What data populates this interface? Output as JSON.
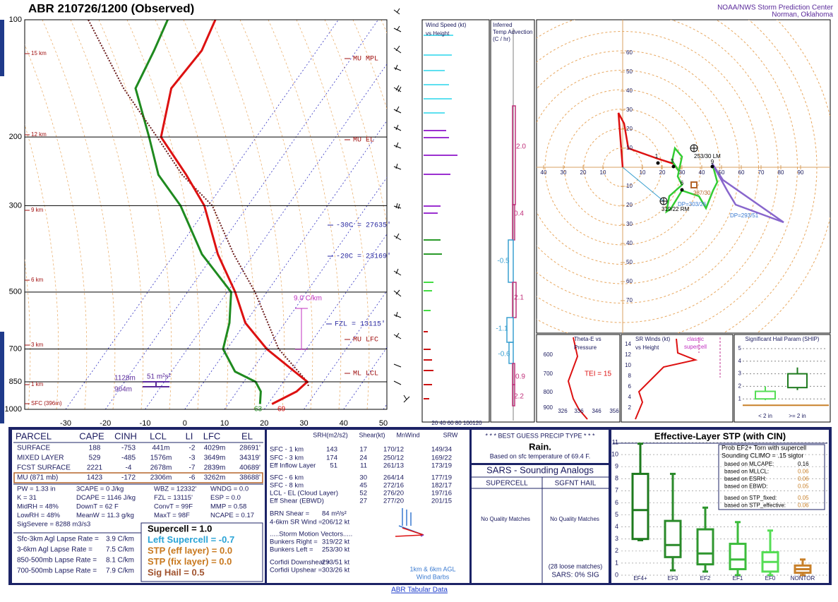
{
  "header": {
    "station_title": "ABR   210726/1200  (Observed)",
    "org": "NOAA/NWS Storm Prediction Center",
    "location": "Norman, Oklahoma"
  },
  "skewt": {
    "pressure_ticks": [
      100,
      200,
      300,
      500,
      700,
      850,
      1000
    ],
    "temp_ticks": [
      -30,
      -20,
      -10,
      0,
      10,
      20,
      30,
      40,
      50
    ],
    "height_labels": [
      "15 km",
      "12 km",
      "9 km",
      "6 km",
      "3 km",
      "1 km",
      "SFC (396m)"
    ],
    "annotations": [
      "MU MPL",
      "MU EL",
      "-30C = 27635'",
      "-20C = 23169'",
      "FZL = 13115'",
      "MU LFC",
      "ML LCL"
    ],
    "lapse_label": "9.0 C/km",
    "inflow_top": "1128m",
    "inflow_srh": "51 m²s²",
    "inflow_bottom": "904m",
    "sfc_dewpoint": "63",
    "sfc_temp": "69",
    "pressure": [
      969,
      900,
      850,
      800,
      700,
      600,
      500,
      400,
      300,
      250,
      200,
      150,
      120,
      100
    ],
    "temperature": [
      21,
      25,
      26,
      21,
      10,
      0,
      -8,
      -19,
      -31,
      -41,
      -54,
      -60,
      -59,
      -61
    ],
    "dewpoint": [
      18,
      16,
      13,
      6,
      -1,
      -4,
      -9,
      -23,
      -37,
      -48,
      -57,
      -69,
      -71,
      -73
    ],
    "parcel_pressure": [
      871,
      850,
      700,
      500,
      400,
      300,
      250,
      200,
      150,
      100
    ],
    "parcel_temp": [
      27,
      26,
      13,
      -3,
      -15,
      -29,
      -42,
      -55,
      -72,
      -93
    ]
  },
  "wind_panel": {
    "title": [
      "Wind Speed (kt)",
      "vs Height"
    ],
    "ticks": "20 40 60 80 100120"
  },
  "advection_panel": {
    "title": [
      "Inferred",
      "Temp Advection",
      "(C / hr)"
    ],
    "labels": [
      "2.0",
      "0.4",
      "-0.5",
      "2.1",
      "-1.1",
      "-0.6",
      "0.9",
      "2.2"
    ]
  },
  "hodograph": {
    "x_ticks": [
      {
        "value": -40,
        "label": "40"
      },
      {
        "value": -30,
        "label": "30"
      },
      {
        "value": -20,
        "label": "20"
      },
      {
        "value": -10,
        "label": "10"
      },
      10,
      20,
      30,
      40,
      50,
      60,
      70,
      80,
      90
    ],
    "y_ticks": [
      60,
      50,
      40,
      30,
      20,
      10,
      {
        "value": -10,
        "label": "10"
      },
      {
        "value": -20,
        "label": "20"
      },
      {
        "value": -30,
        "label": "30"
      },
      {
        "value": -40,
        "label": "40"
      },
      {
        "value": -50,
        "label": "50"
      },
      {
        "value": -60,
        "label": "60"
      },
      {
        "value": -70,
        "label": "70"
      }
    ],
    "labels": [
      "253/30 LM",
      "319/22 RM",
      "287/30",
      "DP=303/26",
      "DP=293/51"
    ],
    "points": [
      "1",
      "3",
      "6",
      "9"
    ]
  },
  "thetae_panel": {
    "title": [
      "Theta-E vs",
      "Pressure"
    ],
    "y_ticks": [
      "600",
      "700",
      "800",
      "900"
    ],
    "x_ticks": [
      "326",
      "336",
      "346",
      "356"
    ],
    "tei": "TEI = 15"
  },
  "srwind_panel": {
    "title": [
      "SR Winds (kt)",
      "vs Height"
    ],
    "note": [
      "classic",
      "supercell"
    ],
    "y_ticks": [
      "14",
      "12",
      "10",
      "8",
      "6",
      "4",
      "2"
    ]
  },
  "ship_panel": {
    "title": "Significant Hail Param (SHIP)",
    "y_ticks": [
      "1",
      "2",
      "3",
      "4",
      "5"
    ],
    "categories": [
      "< 2 in",
      ">= 2 in"
    ]
  },
  "parcel_table": {
    "headers": [
      "PARCEL",
      "CAPE",
      "CINH",
      "LCL",
      "LI",
      "LFC",
      "EL"
    ],
    "rows": [
      [
        "SURFACE",
        "188",
        "-753",
        "441m",
        "-2",
        "4029m",
        "28691'"
      ],
      [
        "MIXED LAYER",
        "529",
        "-485",
        "1576m",
        "-3",
        "3649m",
        "34319'"
      ],
      [
        "FCST SURFACE",
        "2221",
        "-4",
        "2678m",
        "-7",
        "2839m",
        "40689'"
      ],
      [
        "MU   (871 mb)",
        "1423",
        "-172",
        "2306m",
        "-6",
        "3262m",
        "38688'"
      ]
    ]
  },
  "indices": [
    [
      "PW = 1.33 in",
      "3CAPE = 0 J/kg",
      "WBZ = 12332'",
      "WNDG = 0.0"
    ],
    [
      "K = 31",
      "DCAPE = 1146 J/kg",
      "FZL = 13115'",
      "ESP = 0.0"
    ],
    [
      "MidRH = 48%",
      "DownT = 62 F",
      "ConvT = 99F",
      "MMP = 0.58"
    ],
    [
      "LowRH = 48%",
      "MeanW = 11.3 g/kg",
      "MaxT = 98F",
      "NCAPE = 0.17"
    ],
    [
      "SigSevere = 8288 m3/s3"
    ]
  ],
  "lapse_rates": [
    [
      "Sfc-3km Agl Lapse Rate =",
      "3.9 C/km"
    ],
    [
      "3-6km Agl Lapse Rate =",
      "7.5 C/km"
    ],
    [
      "850-500mb Lapse Rate =",
      "8.1 C/km"
    ],
    [
      "700-500mb Lapse Rate =",
      "7.9 C/km"
    ]
  ],
  "composites": [
    "Supercell = 1.0",
    "Left Supercell = -0.7",
    "STP (eff layer) = 0.0",
    "STP (fix layer) = 0.0",
    "Sig Hail = 0.5"
  ],
  "kinematics": {
    "headers": [
      "SRH(m2/s2)",
      "Shear(kt)",
      "MnWind",
      "SRW"
    ],
    "rows": [
      {
        "label": "SFC - 1 km",
        "srh": "143",
        "shear": "17",
        "mnwind": "170/12",
        "srw": "149/34"
      },
      {
        "label": "SFC - 3 km",
        "srh": "174",
        "shear": "24",
        "mnwind": "250/12",
        "srw": "169/22"
      },
      {
        "label": "Eff Inflow Layer",
        "srh": "51",
        "shear": "11",
        "mnwind": "261/13",
        "srw": "173/19"
      },
      {
        "label": "SFC - 6 km",
        "shear": "30",
        "mnwind": "264/14",
        "srw": "177/19"
      },
      {
        "label": "SFC - 8 km",
        "shear": "45",
        "mnwind": "272/16",
        "srw": "182/17"
      },
      {
        "label": "LCL - EL (Cloud Layer)",
        "shear": "52",
        "mnwind": "276/20",
        "srw": "197/16"
      },
      {
        "label": "Eff Shear (EBWD)",
        "shear": "27",
        "mnwind": "277/20",
        "srw": "201/15"
      }
    ],
    "lines": [
      [
        "BRN Shear =",
        "84 m²/s²"
      ],
      [
        "4-6km SR Wind =",
        "206/12 kt"
      ],
      [
        ".....Storm Motion Vectors....."
      ],
      [
        "Bunkers Right =",
        "319/22 kt"
      ],
      [
        "Bunkers Left =",
        "253/30 kt"
      ],
      [
        "Corfidi Downshear =",
        "293/51 kt"
      ],
      [
        "Corfidi Upshear =",
        "303/26 kt"
      ]
    ],
    "barb_note": [
      "1km & 6km AGL",
      "Wind Barbs"
    ]
  },
  "precip": {
    "title": "* * * BEST GUESS PRECIP TYPE * * *",
    "type": "Rain.",
    "basis": "Based on sfc temperature of 69.4 F."
  },
  "sars": {
    "title": "SARS - Sounding Analogs",
    "columns": [
      "SUPERCELL",
      "SGFNT HAIL"
    ],
    "matches": [
      "No Quality Matches",
      "No Quality Matches"
    ],
    "loose": "(28 loose matches)",
    "summary": "SARS:  0% SIG"
  },
  "stp": {
    "title": "Effective-Layer STP (with CIN)",
    "yticks": [
      0,
      1,
      2,
      3,
      4,
      5,
      6,
      7,
      8,
      9,
      10,
      11
    ],
    "ylim": [
      0,
      11
    ],
    "boxes": [
      {
        "name": "EF4+",
        "color": "#1e7a1e",
        "low": 2.9,
        "q1": 3.0,
        "median": 5.4,
        "q3": 8.4,
        "high": 10.9
      },
      {
        "name": "EF3",
        "color": "#2a8a2a",
        "low": 0.4,
        "q1": 1.5,
        "median": 2.5,
        "q3": 4.5,
        "high": 8.4
      },
      {
        "name": "EF2",
        "color": "#2e962e",
        "low": 0.3,
        "q1": 0.9,
        "median": 1.8,
        "q3": 3.8,
        "high": 5.6
      },
      {
        "name": "EF1",
        "color": "#3cbc3c",
        "low": 0,
        "q1": 0.5,
        "median": 1.3,
        "q3": 2.6,
        "high": 4.4
      },
      {
        "name": "EF0",
        "color": "#55dd55",
        "low": 0,
        "q1": 0.3,
        "median": 1.1,
        "q3": 1.9,
        "high": 3.7
      },
      {
        "name": "NONTOR",
        "color": "#c8802a",
        "low": 0,
        "q1": 0.2,
        "median": 0.5,
        "q3": 0.8,
        "high": 1.3
      }
    ],
    "prob_title": [
      "Prob EF2+ Torn with supercell",
      "Sounding CLIMO = .15 sigtor"
    ],
    "prob_rows": [
      [
        "based on MLCAPE:",
        "0.16"
      ],
      [
        "based on MLLCL:",
        "0.06"
      ],
      [
        "based on ESRH:",
        "0.06"
      ],
      [
        "based on EBWD:",
        "0.05"
      ],
      [
        "based on STP_fixed:",
        "0.05"
      ],
      [
        "based on STP_effective:",
        "0.06"
      ]
    ]
  },
  "footer": {
    "link": "ABR Tabular Data"
  }
}
